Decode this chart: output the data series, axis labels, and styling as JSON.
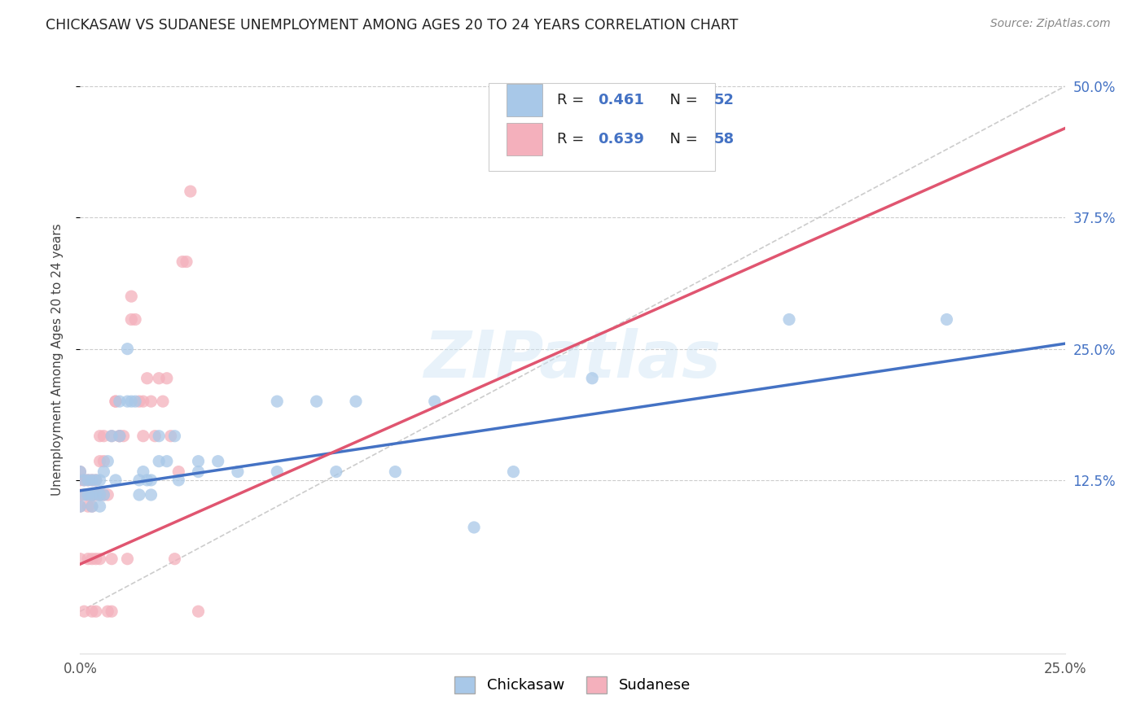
{
  "title": "CHICKASAW VS SUDANESE UNEMPLOYMENT AMONG AGES 20 TO 24 YEARS CORRELATION CHART",
  "source": "Source: ZipAtlas.com",
  "ylabel": "Unemployment Among Ages 20 to 24 years",
  "xlim": [
    0.0,
    0.25
  ],
  "ylim": [
    -0.04,
    0.52
  ],
  "xticks": [
    0.0,
    0.05,
    0.1,
    0.15,
    0.2,
    0.25
  ],
  "xtick_labels": [
    "0.0%",
    "",
    "",
    "",
    "",
    "25.0%"
  ],
  "ytick_labels_right": [
    "50.0%",
    "37.5%",
    "25.0%",
    "12.5%"
  ],
  "ytick_vals_right": [
    0.5,
    0.375,
    0.25,
    0.125
  ],
  "chickasaw_color": "#a8c8e8",
  "sudanese_color": "#f4b0bc",
  "chickasaw_line_color": "#4472c4",
  "sudanese_line_color": "#e05570",
  "diagonal_color": "#cccccc",
  "legend_r_chickasaw": "0.461",
  "legend_n_chickasaw": "52",
  "legend_r_sudanese": "0.639",
  "legend_n_sudanese": "58",
  "watermark": "ZIPatlas",
  "chickasaw_points": [
    [
      0.0,
      0.133
    ],
    [
      0.0,
      0.1
    ],
    [
      0.001,
      0.111
    ],
    [
      0.001,
      0.125
    ],
    [
      0.002,
      0.111
    ],
    [
      0.002,
      0.125
    ],
    [
      0.003,
      0.1
    ],
    [
      0.003,
      0.111
    ],
    [
      0.003,
      0.125
    ],
    [
      0.004,
      0.111
    ],
    [
      0.004,
      0.125
    ],
    [
      0.005,
      0.1
    ],
    [
      0.005,
      0.111
    ],
    [
      0.005,
      0.125
    ],
    [
      0.006,
      0.133
    ],
    [
      0.006,
      0.111
    ],
    [
      0.007,
      0.143
    ],
    [
      0.008,
      0.167
    ],
    [
      0.009,
      0.125
    ],
    [
      0.01,
      0.2
    ],
    [
      0.01,
      0.167
    ],
    [
      0.012,
      0.25
    ],
    [
      0.012,
      0.2
    ],
    [
      0.013,
      0.2
    ],
    [
      0.014,
      0.2
    ],
    [
      0.015,
      0.125
    ],
    [
      0.015,
      0.111
    ],
    [
      0.016,
      0.133
    ],
    [
      0.017,
      0.125
    ],
    [
      0.018,
      0.125
    ],
    [
      0.018,
      0.111
    ],
    [
      0.02,
      0.167
    ],
    [
      0.02,
      0.143
    ],
    [
      0.022,
      0.143
    ],
    [
      0.024,
      0.167
    ],
    [
      0.025,
      0.125
    ],
    [
      0.03,
      0.143
    ],
    [
      0.03,
      0.133
    ],
    [
      0.035,
      0.143
    ],
    [
      0.04,
      0.133
    ],
    [
      0.05,
      0.2
    ],
    [
      0.05,
      0.133
    ],
    [
      0.06,
      0.2
    ],
    [
      0.065,
      0.133
    ],
    [
      0.07,
      0.2
    ],
    [
      0.08,
      0.133
    ],
    [
      0.09,
      0.2
    ],
    [
      0.1,
      0.08
    ],
    [
      0.11,
      0.133
    ],
    [
      0.13,
      0.222
    ],
    [
      0.18,
      0.278
    ],
    [
      0.22,
      0.278
    ]
  ],
  "sudanese_points": [
    [
      0.0,
      0.05
    ],
    [
      0.0,
      0.1
    ],
    [
      0.0,
      0.111
    ],
    [
      0.0,
      0.125
    ],
    [
      0.0,
      0.133
    ],
    [
      0.001,
      0.111
    ],
    [
      0.001,
      0.125
    ],
    [
      0.001,
      0.0
    ],
    [
      0.002,
      0.05
    ],
    [
      0.002,
      0.1
    ],
    [
      0.002,
      0.111
    ],
    [
      0.002,
      0.125
    ],
    [
      0.003,
      0.0
    ],
    [
      0.003,
      0.05
    ],
    [
      0.003,
      0.1
    ],
    [
      0.003,
      0.111
    ],
    [
      0.003,
      0.125
    ],
    [
      0.004,
      0.0
    ],
    [
      0.004,
      0.05
    ],
    [
      0.004,
      0.111
    ],
    [
      0.004,
      0.125
    ],
    [
      0.005,
      0.05
    ],
    [
      0.005,
      0.111
    ],
    [
      0.005,
      0.143
    ],
    [
      0.005,
      0.167
    ],
    [
      0.006,
      0.111
    ],
    [
      0.006,
      0.143
    ],
    [
      0.006,
      0.167
    ],
    [
      0.007,
      0.0
    ],
    [
      0.007,
      0.111
    ],
    [
      0.008,
      0.0
    ],
    [
      0.008,
      0.05
    ],
    [
      0.008,
      0.167
    ],
    [
      0.009,
      0.2
    ],
    [
      0.009,
      0.2
    ],
    [
      0.01,
      0.167
    ],
    [
      0.01,
      0.167
    ],
    [
      0.011,
      0.167
    ],
    [
      0.012,
      0.05
    ],
    [
      0.013,
      0.3
    ],
    [
      0.013,
      0.278
    ],
    [
      0.014,
      0.278
    ],
    [
      0.015,
      0.2
    ],
    [
      0.016,
      0.2
    ],
    [
      0.016,
      0.167
    ],
    [
      0.017,
      0.222
    ],
    [
      0.018,
      0.2
    ],
    [
      0.019,
      0.167
    ],
    [
      0.02,
      0.222
    ],
    [
      0.021,
      0.2
    ],
    [
      0.022,
      0.222
    ],
    [
      0.023,
      0.167
    ],
    [
      0.024,
      0.05
    ],
    [
      0.025,
      0.133
    ],
    [
      0.026,
      0.333
    ],
    [
      0.027,
      0.333
    ],
    [
      0.028,
      0.4
    ],
    [
      0.03,
      0.0
    ]
  ],
  "chickasaw_line": {
    "x0": 0.0,
    "y0": 0.115,
    "x1": 0.25,
    "y1": 0.255
  },
  "sudanese_line": {
    "x0": 0.0,
    "y0": 0.045,
    "x1": 0.25,
    "y1": 0.46
  },
  "diagonal_line": {
    "x0": 0.0,
    "y0": 0.0,
    "x1": 0.25,
    "y1": 0.5
  }
}
